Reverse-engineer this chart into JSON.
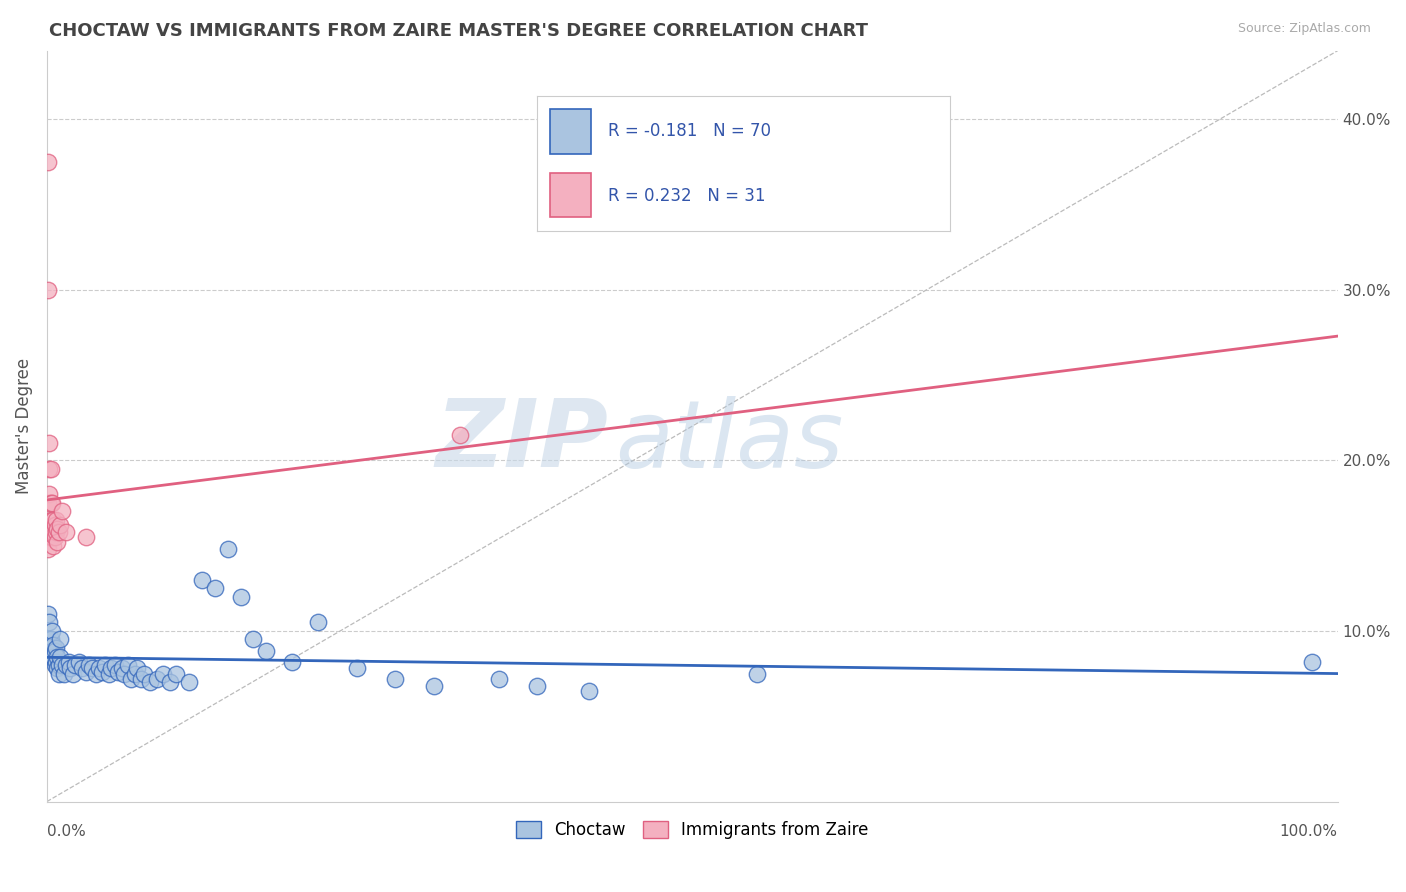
{
  "title": "CHOCTAW VS IMMIGRANTS FROM ZAIRE MASTER'S DEGREE CORRELATION CHART",
  "source": "Source: ZipAtlas.com",
  "ylabel": "Master's Degree",
  "xlim": [
    0,
    1.0
  ],
  "ylim": [
    0,
    0.44
  ],
  "yticks": [
    0.1,
    0.2,
    0.3,
    0.4
  ],
  "ytick_labels": [
    "10.0%",
    "20.0%",
    "30.0%",
    "40.0%"
  ],
  "xtick_left": "0.0%",
  "xtick_right": "100.0%",
  "legend_labels": [
    "Choctaw",
    "Immigrants from Zaire"
  ],
  "r_choctaw": -0.181,
  "n_choctaw": 70,
  "r_zaire": 0.232,
  "n_zaire": 31,
  "color_choctaw": "#aac4e0",
  "color_zaire": "#f4b0c0",
  "line_color_choctaw": "#3366bb",
  "line_color_zaire": "#e06080",
  "watermark_zip": "ZIP",
  "watermark_atlas": "atlas",
  "background_color": "#ffffff",
  "grid_color": "#cccccc",
  "title_color": "#444444",
  "choctaw_x": [
    0.001,
    0.001,
    0.002,
    0.002,
    0.003,
    0.003,
    0.004,
    0.004,
    0.005,
    0.005,
    0.006,
    0.006,
    0.007,
    0.007,
    0.008,
    0.008,
    0.009,
    0.009,
    0.01,
    0.01,
    0.012,
    0.013,
    0.015,
    0.017,
    0.018,
    0.02,
    0.022,
    0.025,
    0.027,
    0.03,
    0.033,
    0.035,
    0.038,
    0.04,
    0.043,
    0.045,
    0.048,
    0.05,
    0.053,
    0.055,
    0.058,
    0.06,
    0.063,
    0.065,
    0.068,
    0.07,
    0.073,
    0.075,
    0.08,
    0.085,
    0.09,
    0.095,
    0.1,
    0.11,
    0.12,
    0.13,
    0.14,
    0.15,
    0.16,
    0.17,
    0.19,
    0.21,
    0.24,
    0.27,
    0.3,
    0.35,
    0.38,
    0.42,
    0.55,
    0.98
  ],
  "choctaw_y": [
    0.11,
    0.095,
    0.105,
    0.09,
    0.095,
    0.085,
    0.1,
    0.088,
    0.092,
    0.085,
    0.088,
    0.08,
    0.09,
    0.082,
    0.085,
    0.078,
    0.08,
    0.075,
    0.085,
    0.095,
    0.08,
    0.075,
    0.08,
    0.082,
    0.078,
    0.075,
    0.08,
    0.082,
    0.078,
    0.076,
    0.08,
    0.078,
    0.075,
    0.078,
    0.076,
    0.08,
    0.075,
    0.078,
    0.08,
    0.076,
    0.078,
    0.075,
    0.08,
    0.072,
    0.075,
    0.078,
    0.072,
    0.075,
    0.07,
    0.072,
    0.075,
    0.07,
    0.075,
    0.07,
    0.13,
    0.125,
    0.148,
    0.12,
    0.095,
    0.088,
    0.082,
    0.105,
    0.078,
    0.072,
    0.068,
    0.072,
    0.068,
    0.065,
    0.075,
    0.082
  ],
  "zaire_x": [
    0.001,
    0.001,
    0.001,
    0.001,
    0.001,
    0.002,
    0.002,
    0.002,
    0.002,
    0.003,
    0.003,
    0.003,
    0.003,
    0.004,
    0.004,
    0.004,
    0.005,
    0.005,
    0.005,
    0.006,
    0.006,
    0.007,
    0.007,
    0.008,
    0.008,
    0.009,
    0.01,
    0.012,
    0.015,
    0.03,
    0.32
  ],
  "zaire_y": [
    0.375,
    0.3,
    0.175,
    0.155,
    0.148,
    0.21,
    0.195,
    0.18,
    0.16,
    0.195,
    0.175,
    0.165,
    0.155,
    0.175,
    0.165,
    0.155,
    0.165,
    0.158,
    0.15,
    0.162,
    0.155,
    0.165,
    0.158,
    0.16,
    0.152,
    0.158,
    0.162,
    0.17,
    0.158,
    0.155,
    0.215
  ]
}
